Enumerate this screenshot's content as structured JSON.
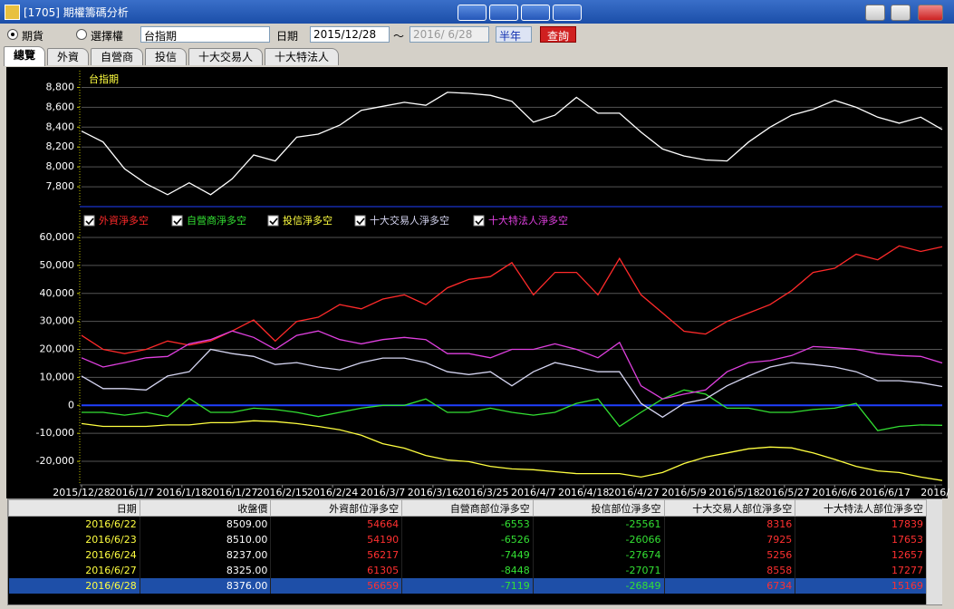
{
  "window": {
    "title": "[1705] 期權籌碼分析"
  },
  "toolbar": {
    "radios": [
      "期貨",
      "選擇權"
    ],
    "product": "台指期",
    "date_label": "日期",
    "start_date": "2015/12/28",
    "separator": "～",
    "end_date": "2016/ 6/28",
    "period": "半年",
    "query": "查詢"
  },
  "tabs": [
    "總覽",
    "外資",
    "自營商",
    "投信",
    "十大交易人",
    "十大特法人"
  ],
  "chart_data": [
    {
      "type": "line",
      "title": "台指期",
      "x": [
        0,
        3,
        6,
        9,
        12,
        15,
        18,
        21,
        24,
        27,
        30,
        33,
        36,
        39,
        42,
        45,
        48,
        51,
        54,
        57,
        60,
        63,
        66,
        69,
        72,
        75,
        78,
        81,
        84,
        87,
        90,
        93,
        96,
        99,
        102,
        105,
        108,
        111,
        114,
        117,
        120
      ],
      "xlim": [
        0,
        120
      ],
      "ylim": [
        7600,
        8950
      ],
      "yticks": [
        {
          "value": 7800,
          "label": "7,800"
        },
        {
          "value": 8000,
          "label": "8,000"
        },
        {
          "value": 8200,
          "label": "8,200"
        },
        {
          "value": 8400,
          "label": "8,400"
        },
        {
          "value": 8600,
          "label": "8,600"
        },
        {
          "value": 8800,
          "label": "8,800"
        }
      ],
      "grid": true,
      "series": [
        {
          "color": "#ffffff",
          "values": [
            8360,
            8250,
            7980,
            7830,
            7720,
            7840,
            7720,
            7880,
            8120,
            8060,
            8300,
            8330,
            8420,
            8570,
            8610,
            8650,
            8620,
            8750,
            8740,
            8720,
            8660,
            8450,
            8520,
            8700,
            8540,
            8540,
            8350,
            8180,
            8110,
            8070,
            8060,
            8250,
            8400,
            8520,
            8580,
            8670,
            8600,
            8500,
            8440,
            8500,
            8376
          ]
        }
      ]
    },
    {
      "type": "line",
      "x": [
        0,
        3,
        6,
        9,
        12,
        15,
        18,
        21,
        24,
        27,
        30,
        33,
        36,
        39,
        42,
        45,
        48,
        51,
        54,
        57,
        60,
        63,
        66,
        69,
        72,
        75,
        78,
        81,
        84,
        87,
        90,
        93,
        96,
        99,
        102,
        105,
        108,
        111,
        114,
        117,
        120
      ],
      "xlim": [
        0,
        120
      ],
      "ylim": [
        -28400,
        68100
      ],
      "xticks": [
        {
          "value": 0,
          "label": "2015/12/28"
        },
        {
          "value": 7,
          "label": "2016/1/7"
        },
        {
          "value": 14,
          "label": "2016/1/18"
        },
        {
          "value": 21,
          "label": "2016/1/27"
        },
        {
          "value": 28,
          "label": "2016/2/15"
        },
        {
          "value": 35,
          "label": "2016/2/24"
        },
        {
          "value": 42,
          "label": "2016/3/7"
        },
        {
          "value": 49,
          "label": "2016/3/16"
        },
        {
          "value": 56,
          "label": "2016/3/25"
        },
        {
          "value": 63,
          "label": "2016/4/7"
        },
        {
          "value": 70,
          "label": "2016/4/18"
        },
        {
          "value": 77,
          "label": "2016/4/27"
        },
        {
          "value": 84,
          "label": "2016/5/9"
        },
        {
          "value": 91,
          "label": "2016/5/18"
        },
        {
          "value": 98,
          "label": "2016/5/27"
        },
        {
          "value": 105,
          "label": "2016/6/6"
        },
        {
          "value": 112,
          "label": "2016/6/17"
        },
        {
          "value": 119,
          "label": "2016/"
        }
      ],
      "yticks": [
        {
          "value": -20000,
          "label": "-20,000"
        },
        {
          "value": -10000,
          "label": "-10,000"
        },
        0,
        {
          "value": 10000,
          "label": "10,000"
        },
        {
          "value": 20000,
          "label": "20,000"
        },
        {
          "value": 30000,
          "label": "30,000"
        },
        {
          "value": 40000,
          "label": "40,000"
        },
        {
          "value": 50000,
          "label": "50,000"
        },
        {
          "value": 60000,
          "label": "60,000"
        }
      ],
      "grid": true,
      "series": [
        {
          "name": "外資淨多空",
          "color": "#ff2a2a",
          "values": [
            25000,
            20000,
            18500,
            20000,
            23000,
            21500,
            23000,
            26600,
            30500,
            23000,
            30000,
            31500,
            36000,
            34500,
            38000,
            39500,
            36000,
            42000,
            45000,
            46000,
            51000,
            39500,
            47500,
            47500,
            39500,
            52500,
            39500,
            33000,
            26500,
            25500,
            30000,
            33000,
            36000,
            41000,
            47500,
            49000,
            54000,
            52000,
            57000,
            55000,
            56659
          ]
        },
        {
          "name": "自營商淨多空",
          "color": "#33e033",
          "values": [
            -2500,
            -2500,
            -3500,
            -2500,
            -4000,
            2500,
            -2500,
            -2500,
            -1000,
            -1500,
            -2500,
            -4000,
            -2500,
            -1000,
            0,
            0,
            2300,
            -2500,
            -2500,
            -1000,
            -2500,
            -3500,
            -2500,
            700,
            2300,
            -7500,
            -2500,
            2300,
            5500,
            4000,
            -1000,
            -1000,
            -2500,
            -2500,
            -1500,
            -1000,
            700,
            -9000,
            -7500,
            -7000,
            -7119
          ]
        },
        {
          "name": "投信淨多空",
          "color": "#ffff40",
          "values": [
            -6500,
            -7500,
            -7500,
            -7500,
            -7000,
            -7000,
            -6200,
            -6200,
            -5500,
            -5800,
            -6500,
            -7500,
            -8700,
            -10700,
            -13700,
            -15300,
            -17900,
            -19500,
            -20100,
            -21800,
            -22700,
            -23000,
            -23700,
            -24400,
            -24400,
            -24400,
            -25600,
            -24000,
            -20800,
            -18500,
            -17000,
            -15500,
            -14900,
            -15200,
            -17000,
            -19300,
            -21800,
            -23400,
            -24000,
            -25600,
            -26849
          ]
        },
        {
          "name": "十大交易人淨多空",
          "color": "#d4d4f0",
          "values": [
            10500,
            6000,
            6000,
            5500,
            10500,
            12000,
            20000,
            18500,
            17500,
            14600,
            15300,
            13700,
            12700,
            15300,
            16900,
            16900,
            15300,
            12000,
            11000,
            12000,
            7000,
            12000,
            15300,
            13700,
            12000,
            12000,
            700,
            -4200,
            700,
            2300,
            7000,
            10500,
            13700,
            15300,
            14600,
            13700,
            12000,
            8800,
            8800,
            8100,
            6734
          ]
        },
        {
          "name": "十大特法人淨多空",
          "color": "#e040e0",
          "values": [
            17000,
            13700,
            15300,
            17000,
            17500,
            22000,
            23500,
            26600,
            24300,
            20000,
            25000,
            26600,
            23500,
            22000,
            23500,
            24300,
            23500,
            18500,
            18500,
            17000,
            20000,
            20000,
            22000,
            20000,
            17000,
            22500,
            7000,
            2300,
            4000,
            5500,
            12000,
            15300,
            16000,
            17800,
            21000,
            20600,
            20000,
            18500,
            17800,
            17500,
            15169
          ]
        }
      ]
    }
  ],
  "table": {
    "columns": [
      "日期",
      "收盤價",
      "外資部位淨多空",
      "自營商部位淨多空",
      "投信部位淨多空",
      "十大交易人部位淨多空",
      "十大特法人部位淨多空"
    ],
    "rows": [
      [
        "2016/6/22",
        "8509.00",
        "54664",
        "-6553",
        "-25561",
        "8316",
        "17839"
      ],
      [
        "2016/6/23",
        "8510.00",
        "54190",
        "-6526",
        "-26066",
        "7925",
        "17653"
      ],
      [
        "2016/6/24",
        "8237.00",
        "56217",
        "-7449",
        "-27674",
        "5256",
        "12657"
      ],
      [
        "2016/6/27",
        "8325.00",
        "61305",
        "-8448",
        "-27071",
        "8558",
        "17277"
      ],
      [
        "2016/6/28",
        "8376.00",
        "56659",
        "-7119",
        "-26849",
        "6734",
        "15169"
      ]
    ]
  }
}
